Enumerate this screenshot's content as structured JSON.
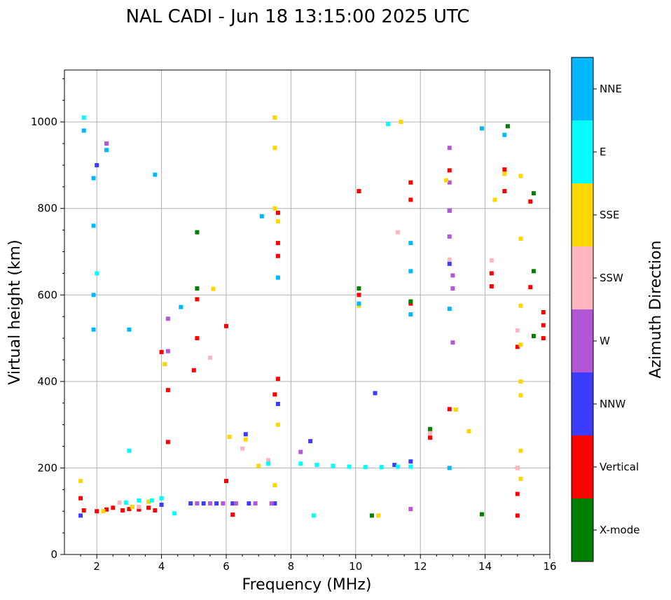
{
  "chart_data": {
    "type": "scatter",
    "title": "NAL CADI - Jun 18 13:15:00 2025 UTC",
    "xlabel": "Frequency (MHz)",
    "ylabel": "Virtual height (km)",
    "xlim": [
      1,
      16
    ],
    "ylim": [
      0,
      1120
    ],
    "xticks": [
      2,
      4,
      6,
      8,
      10,
      12,
      14,
      16
    ],
    "yticks": [
      0,
      200,
      400,
      600,
      800,
      1000
    ],
    "grid": true,
    "colorbar": {
      "label": "Azimuth Direction",
      "categories": [
        {
          "name": "X-mode",
          "color": "#008000"
        },
        {
          "name": "Vertical",
          "color": "#ff0000"
        },
        {
          "name": "NNW",
          "color": "#3c3cff"
        },
        {
          "name": "W",
          "color": "#b556d6"
        },
        {
          "name": "SSW",
          "color": "#ffb6c1"
        },
        {
          "name": "SSE",
          "color": "#ffd700"
        },
        {
          "name": "E",
          "color": "#00ffff"
        },
        {
          "name": "NNE",
          "color": "#00b8ff"
        }
      ]
    },
    "series": [
      {
        "category": "Vertical",
        "points": [
          [
            1.5,
            130
          ],
          [
            1.6,
            102
          ],
          [
            2.0,
            100
          ],
          [
            2.3,
            104
          ],
          [
            2.5,
            108
          ],
          [
            2.8,
            102
          ],
          [
            3.0,
            105
          ],
          [
            3.3,
            104
          ],
          [
            3.6,
            108
          ],
          [
            3.8,
            102
          ],
          [
            4.0,
            468
          ],
          [
            4.2,
            380
          ],
          [
            4.2,
            260
          ],
          [
            5.1,
            500
          ],
          [
            5.1,
            590
          ],
          [
            5.0,
            426
          ],
          [
            6.0,
            528
          ],
          [
            6.0,
            170
          ],
          [
            6.2,
            92
          ],
          [
            7.6,
            790
          ],
          [
            7.6,
            720
          ],
          [
            7.6,
            690
          ],
          [
            7.6,
            406
          ],
          [
            7.5,
            370
          ],
          [
            10.1,
            840
          ],
          [
            10.1,
            600
          ],
          [
            11.7,
            860
          ],
          [
            11.7,
            820
          ],
          [
            11.7,
            580
          ],
          [
            12.3,
            270
          ],
          [
            12.9,
            888
          ],
          [
            12.9,
            336
          ],
          [
            14.2,
            650
          ],
          [
            14.2,
            620
          ],
          [
            14.6,
            890
          ],
          [
            14.6,
            840
          ],
          [
            15.0,
            480
          ],
          [
            15.0,
            200
          ],
          [
            15.0,
            140
          ],
          [
            15.0,
            90
          ],
          [
            15.4,
            816
          ],
          [
            15.4,
            618
          ],
          [
            15.8,
            560
          ],
          [
            15.8,
            530
          ],
          [
            15.8,
            500
          ]
        ]
      },
      {
        "category": "X-mode",
        "points": [
          [
            5.1,
            745
          ],
          [
            5.1,
            615
          ],
          [
            10.1,
            615
          ],
          [
            11.7,
            585
          ],
          [
            12.3,
            290
          ],
          [
            13.9,
            93
          ],
          [
            14.7,
            990
          ],
          [
            15.5,
            835
          ],
          [
            15.5,
            655
          ],
          [
            15.5,
            505
          ],
          [
            10.5,
            90
          ]
        ]
      },
      {
        "category": "NNW",
        "points": [
          [
            1.5,
            90
          ],
          [
            2.0,
            900
          ],
          [
            4.0,
            115
          ],
          [
            4.9,
            118
          ],
          [
            5.3,
            118
          ],
          [
            5.7,
            118
          ],
          [
            6.2,
            118
          ],
          [
            6.7,
            118
          ],
          [
            6.6,
            278
          ],
          [
            7.5,
            118
          ],
          [
            7.6,
            348
          ],
          [
            8.6,
            262
          ],
          [
            10.6,
            373
          ],
          [
            11.2,
            207
          ],
          [
            11.7,
            215
          ],
          [
            12.9,
            672
          ],
          [
            12.9,
            795
          ]
        ]
      },
      {
        "category": "W",
        "points": [
          [
            2.3,
            950
          ],
          [
            4.2,
            470
          ],
          [
            4.2,
            545
          ],
          [
            5.1,
            118
          ],
          [
            5.5,
            118
          ],
          [
            5.9,
            118
          ],
          [
            6.3,
            118
          ],
          [
            6.9,
            118
          ],
          [
            7.4,
            118
          ],
          [
            8.3,
            237
          ],
          [
            12.9,
            940
          ],
          [
            12.9,
            735
          ],
          [
            12.9,
            795
          ],
          [
            12.9,
            860
          ],
          [
            13.0,
            645
          ],
          [
            13.0,
            615
          ],
          [
            13.0,
            490
          ],
          [
            11.7,
            105
          ]
        ]
      },
      {
        "category": "SSW",
        "points": [
          [
            2.7,
            120
          ],
          [
            3.3,
            110
          ],
          [
            5.5,
            455
          ],
          [
            6.5,
            245
          ],
          [
            7.3,
            218
          ],
          [
            11.3,
            745
          ],
          [
            12.3,
            280
          ],
          [
            12.9,
            682
          ],
          [
            14.2,
            680
          ],
          [
            15.0,
            518
          ],
          [
            15.0,
            200
          ]
        ]
      },
      {
        "category": "SSE",
        "points": [
          [
            1.5,
            170
          ],
          [
            2.2,
            100
          ],
          [
            3.1,
            110
          ],
          [
            3.6,
            122
          ],
          [
            4.1,
            440
          ],
          [
            5.6,
            614
          ],
          [
            6.1,
            272
          ],
          [
            6.6,
            266
          ],
          [
            7.0,
            205
          ],
          [
            7.5,
            1010
          ],
          [
            7.5,
            940
          ],
          [
            7.5,
            800
          ],
          [
            7.6,
            770
          ],
          [
            7.6,
            300
          ],
          [
            7.5,
            160
          ],
          [
            10.1,
            575
          ],
          [
            10.7,
            90
          ],
          [
            11.4,
            1000
          ],
          [
            12.8,
            865
          ],
          [
            13.1,
            335
          ],
          [
            13.5,
            285
          ],
          [
            14.6,
            880
          ],
          [
            15.1,
            875
          ],
          [
            15.1,
            730
          ],
          [
            15.1,
            575
          ],
          [
            15.1,
            485
          ],
          [
            15.1,
            400
          ],
          [
            15.1,
            368
          ],
          [
            15.1,
            240
          ],
          [
            15.1,
            175
          ],
          [
            14.3,
            820
          ]
        ]
      },
      {
        "category": "E",
        "points": [
          [
            1.6,
            1010
          ],
          [
            2.0,
            650
          ],
          [
            2.9,
            120
          ],
          [
            3.0,
            240
          ],
          [
            3.3,
            125
          ],
          [
            3.7,
            125
          ],
          [
            4.0,
            130
          ],
          [
            4.4,
            95
          ],
          [
            7.3,
            210
          ],
          [
            8.3,
            210
          ],
          [
            8.8,
            207
          ],
          [
            9.3,
            205
          ],
          [
            9.8,
            203
          ],
          [
            10.3,
            202
          ],
          [
            10.8,
            202
          ],
          [
            11.3,
            203
          ],
          [
            11.7,
            203
          ],
          [
            8.7,
            90
          ],
          [
            11.0,
            995
          ]
        ]
      },
      {
        "category": "NNE",
        "points": [
          [
            1.6,
            980
          ],
          [
            2.3,
            935
          ],
          [
            1.9,
            870
          ],
          [
            1.9,
            760
          ],
          [
            1.9,
            600
          ],
          [
            1.9,
            520
          ],
          [
            3.0,
            520
          ],
          [
            3.8,
            878
          ],
          [
            4.6,
            572
          ],
          [
            7.1,
            782
          ],
          [
            7.6,
            640
          ],
          [
            10.1,
            580
          ],
          [
            11.7,
            720
          ],
          [
            11.7,
            655
          ],
          [
            11.7,
            555
          ],
          [
            12.9,
            568
          ],
          [
            12.9,
            200
          ],
          [
            13.9,
            985
          ],
          [
            14.6,
            970
          ]
        ]
      }
    ]
  }
}
